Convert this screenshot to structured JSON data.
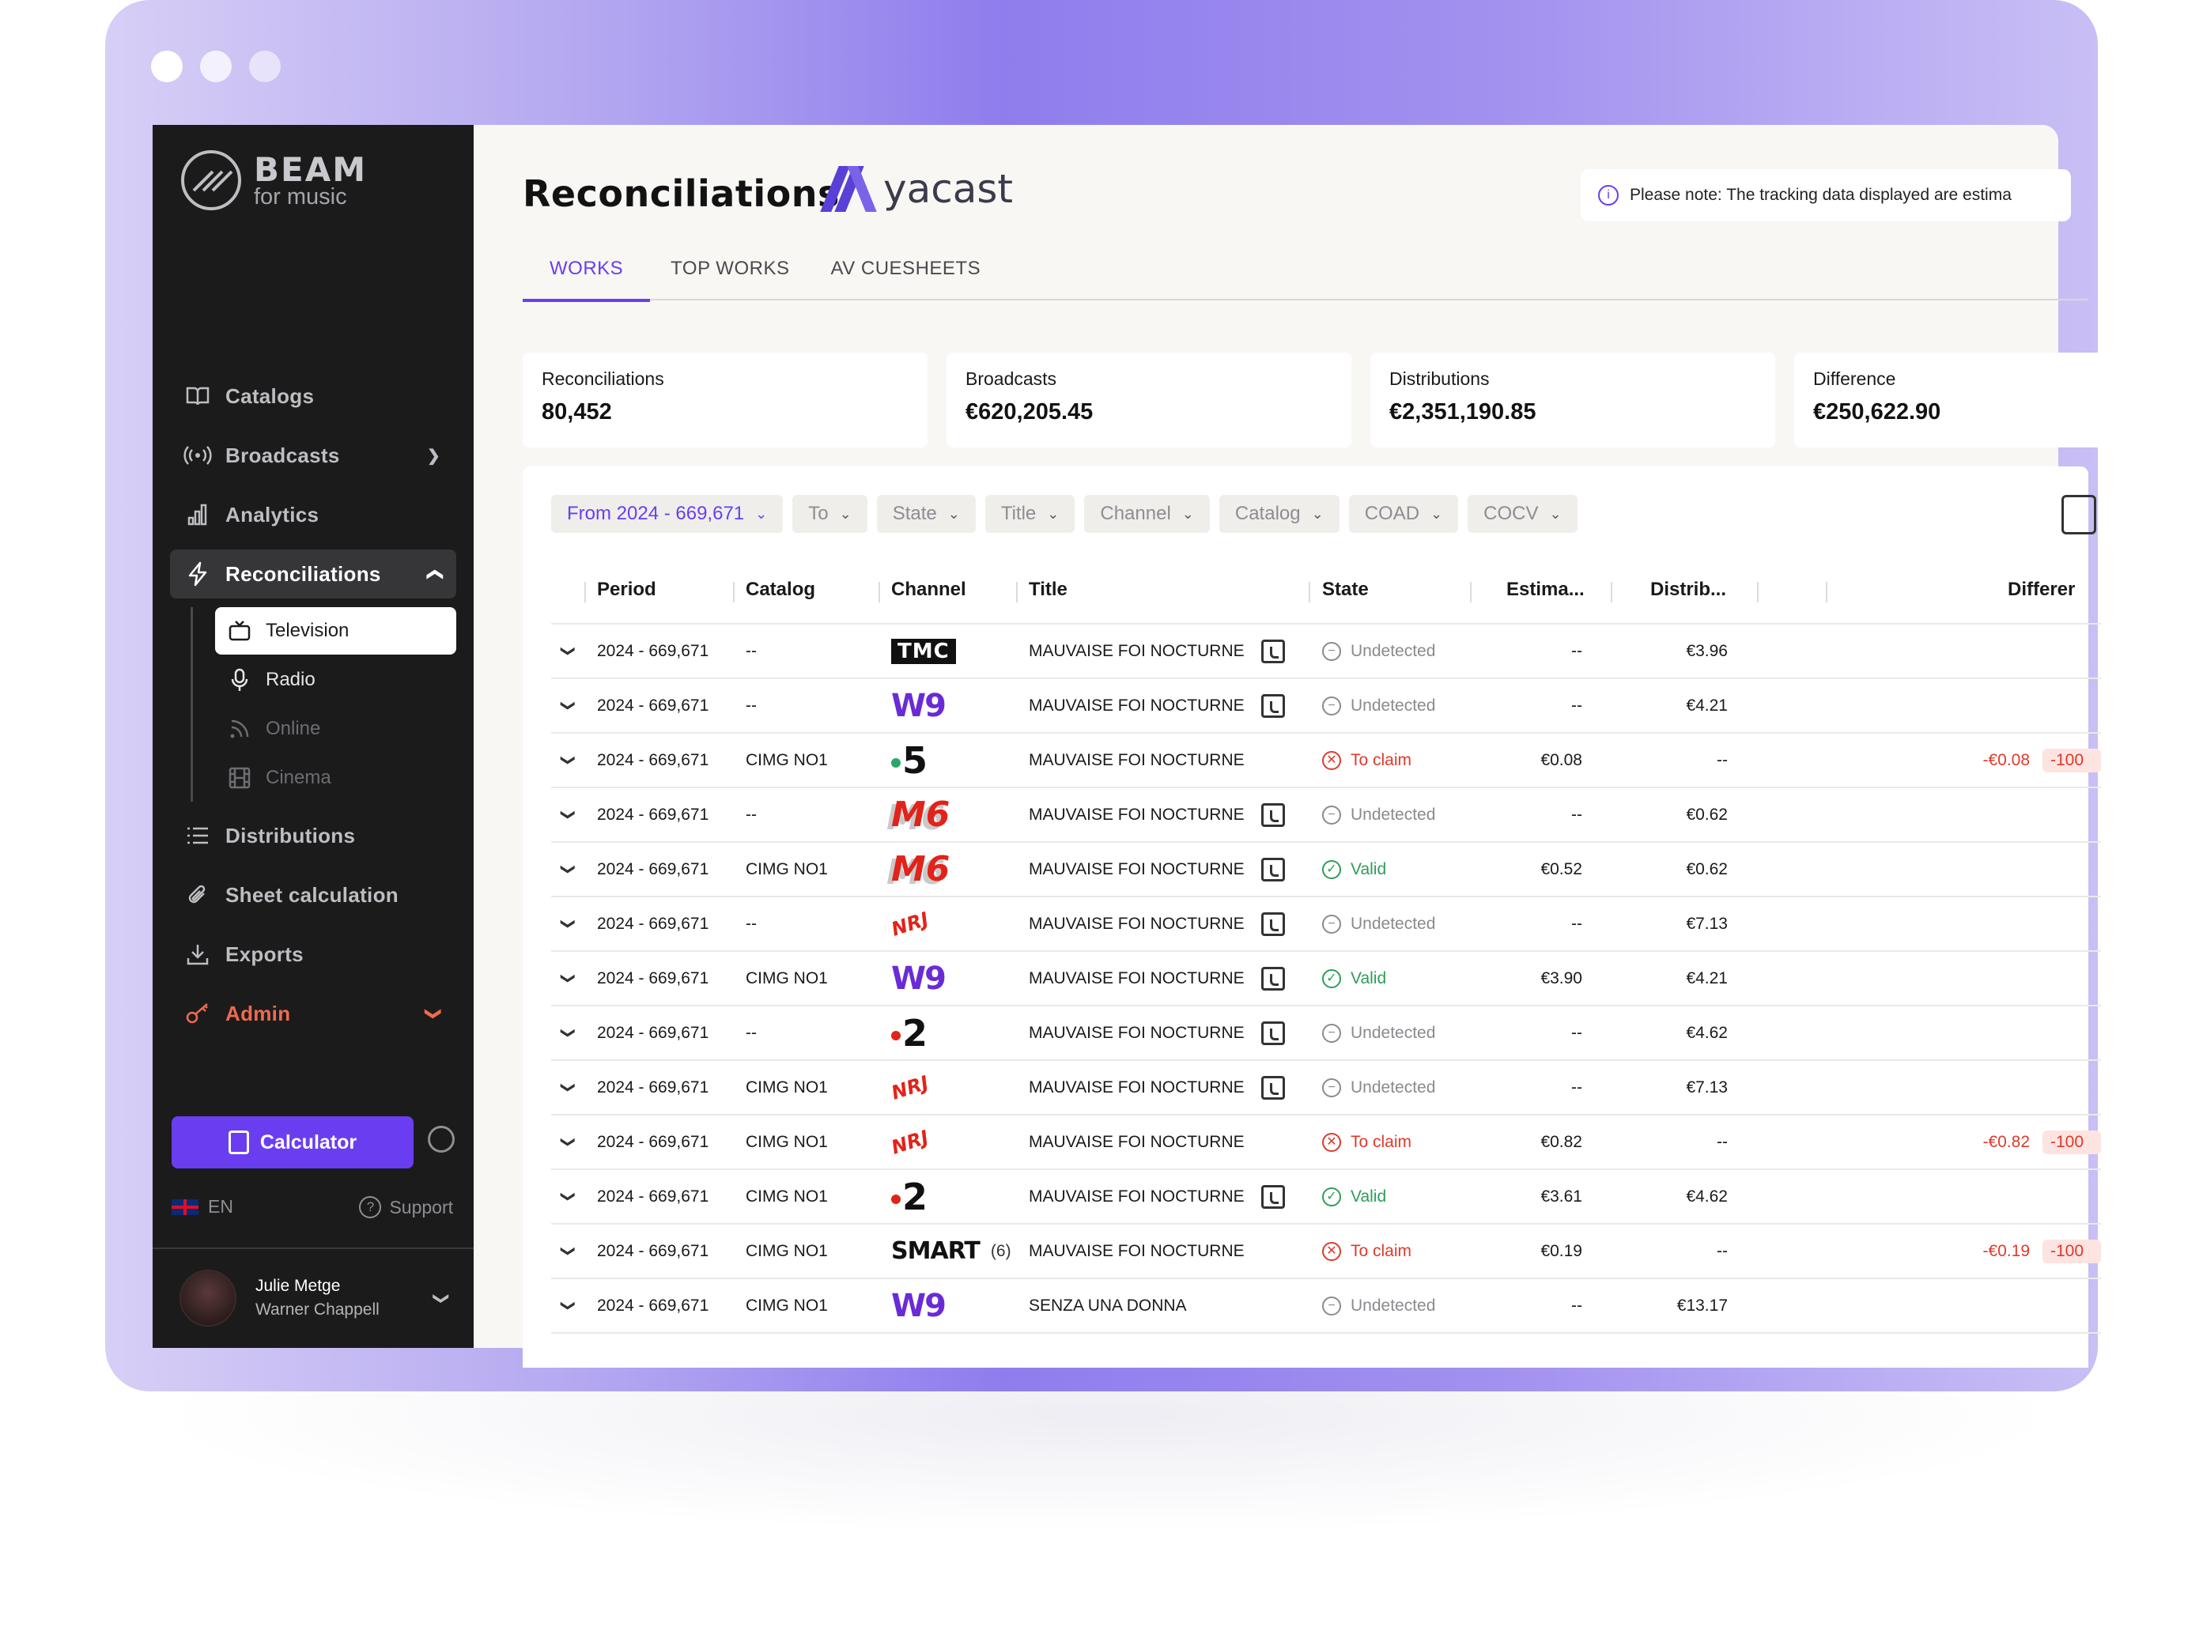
{
  "sidebar": {
    "brand": {
      "name": "BEAM",
      "tagline": "for music"
    },
    "nav": [
      {
        "label": "Catalogs",
        "icon": "book-icon"
      },
      {
        "label": "Broadcasts",
        "icon": "broadcast-icon"
      },
      {
        "label": "Analytics",
        "icon": "bar-chart-icon"
      },
      {
        "label": "Reconciliations",
        "icon": "lightning-icon"
      }
    ],
    "subnav": [
      {
        "label": "Television",
        "icon": "tv-icon"
      },
      {
        "label": "Radio",
        "icon": "microphone-icon"
      },
      {
        "label": "Online",
        "icon": "rss-icon"
      },
      {
        "label": "Cinema",
        "icon": "film-icon"
      }
    ],
    "nav2": [
      {
        "label": "Distributions",
        "icon": "list-icon"
      },
      {
        "label": "Sheet calculation",
        "icon": "paperclip-icon"
      },
      {
        "label": "Exports",
        "icon": "download-icon"
      },
      {
        "label": "Admin",
        "icon": "key-icon"
      }
    ],
    "calculator_label": "Calculator",
    "language": "EN",
    "support": "Support",
    "user": {
      "name": "Julie Metge",
      "org": "Warner Chappell"
    }
  },
  "header": {
    "title": "Reconciliations",
    "partner": "yacast",
    "notice": "Please note: The tracking data displayed are estima"
  },
  "tabs": [
    "WORKS",
    "TOP WORKS",
    "AV CUESHEETS"
  ],
  "stats": [
    {
      "label": "Reconciliations",
      "value": "80,452"
    },
    {
      "label": "Broadcasts",
      "value": "€620,205.45"
    },
    {
      "label": "Distributions",
      "value": "€2,351,190.85"
    },
    {
      "label": "Difference",
      "value": "€250,622.90"
    }
  ],
  "filters": [
    {
      "label": "From 2024 - 669,671",
      "active": true
    },
    {
      "label": "To"
    },
    {
      "label": "State"
    },
    {
      "label": "Title"
    },
    {
      "label": "Channel"
    },
    {
      "label": "Catalog"
    },
    {
      "label": "COAD"
    },
    {
      "label": "COCV"
    }
  ],
  "columns": {
    "period": "Period",
    "catalog": "Catalog",
    "channel": "Channel",
    "title": "Title",
    "state": "State",
    "estimated": "Estima...",
    "distributed": "Distrib...",
    "difference": "Differer"
  },
  "rows": [
    {
      "period": "2024 - 669,671",
      "catalog": "--",
      "channel": "TMC",
      "title": "MAUVAISE FOI NOCTURNE",
      "cue": true,
      "state": "Undetected",
      "est": "--",
      "dist": "€3.96",
      "diff": "",
      "pct": ""
    },
    {
      "period": "2024 - 669,671",
      "catalog": "--",
      "channel": "W9",
      "title": "MAUVAISE FOI NOCTURNE",
      "cue": true,
      "state": "Undetected",
      "est": "--",
      "dist": "€4.21",
      "diff": "",
      "pct": ""
    },
    {
      "period": "2024 - 669,671",
      "catalog": "CIMG NO1",
      "channel": "5",
      "title": "MAUVAISE FOI NOCTURNE",
      "cue": false,
      "state": "To claim",
      "est": "€0.08",
      "dist": "--",
      "diff": "-€0.08",
      "pct": "-100"
    },
    {
      "period": "2024 - 669,671",
      "catalog": "--",
      "channel": "M6",
      "title": "MAUVAISE FOI NOCTURNE",
      "cue": true,
      "state": "Undetected",
      "est": "--",
      "dist": "€0.62",
      "diff": "",
      "pct": ""
    },
    {
      "period": "2024 - 669,671",
      "catalog": "CIMG NO1",
      "channel": "M6",
      "title": "MAUVAISE FOI NOCTURNE",
      "cue": true,
      "state": "Valid",
      "est": "€0.52",
      "dist": "€0.62",
      "diff": "",
      "pct": ""
    },
    {
      "period": "2024 - 669,671",
      "catalog": "--",
      "channel": "NRJ",
      "title": "MAUVAISE FOI NOCTURNE",
      "cue": true,
      "state": "Undetected",
      "est": "--",
      "dist": "€7.13",
      "diff": "",
      "pct": ""
    },
    {
      "period": "2024 - 669,671",
      "catalog": "CIMG NO1",
      "channel": "W9",
      "title": "MAUVAISE FOI NOCTURNE",
      "cue": true,
      "state": "Valid",
      "est": "€3.90",
      "dist": "€4.21",
      "diff": "",
      "pct": ""
    },
    {
      "period": "2024 - 669,671",
      "catalog": "--",
      "channel": "2",
      "title": "MAUVAISE FOI NOCTURNE",
      "cue": true,
      "state": "Undetected",
      "est": "--",
      "dist": "€4.62",
      "diff": "",
      "pct": ""
    },
    {
      "period": "2024 - 669,671",
      "catalog": "CIMG NO1",
      "channel": "NRJ",
      "title": "MAUVAISE FOI NOCTURNE",
      "cue": true,
      "state": "Undetected",
      "est": "--",
      "dist": "€7.13",
      "diff": "",
      "pct": ""
    },
    {
      "period": "2024 - 669,671",
      "catalog": "CIMG NO1",
      "channel": "NRJ",
      "title": "MAUVAISE FOI NOCTURNE",
      "cue": false,
      "state": "To claim",
      "est": "€0.82",
      "dist": "--",
      "diff": "-€0.82",
      "pct": "-100"
    },
    {
      "period": "2024 - 669,671",
      "catalog": "CIMG NO1",
      "channel": "2",
      "title": "MAUVAISE FOI NOCTURNE",
      "cue": true,
      "state": "Valid",
      "est": "€3.61",
      "dist": "€4.62",
      "diff": "",
      "pct": ""
    },
    {
      "period": "2024 - 669,671",
      "catalog": "CIMG NO1",
      "channel": "SMART",
      "channel_count": "(6)",
      "title": "MAUVAISE FOI NOCTURNE",
      "cue": false,
      "state": "To claim",
      "est": "€0.19",
      "dist": "--",
      "diff": "-€0.19",
      "pct": "-100"
    },
    {
      "period": "2024 - 669,671",
      "catalog": "CIMG NO1",
      "channel": "W9",
      "title": "SENZA UNA DONNA",
      "cue": false,
      "state": "Undetected",
      "est": "--",
      "dist": "€13.17",
      "diff": "",
      "pct": ""
    }
  ],
  "colors": {
    "accent": "#6a3ef0",
    "valid": "#2e9d57",
    "claim": "#e0392b",
    "undetected": "#8a8a8f",
    "sidebar": "#1b1b1c"
  }
}
